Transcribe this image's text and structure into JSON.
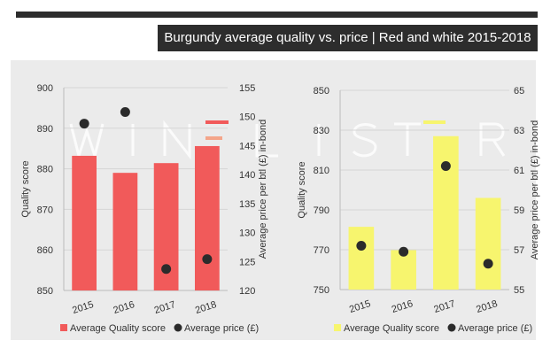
{
  "title": "Burgundy average quality vs. price | Red and white 2015-2018",
  "watermark": "WINELISTER",
  "chart_data": [
    {
      "type": "bar",
      "color": "#f15a5a",
      "categories": [
        "2015",
        "2016",
        "2017",
        "2018"
      ],
      "series": [
        {
          "name": "Average Quality score",
          "values": [
            883.2,
            879,
            881.4,
            885.6
          ],
          "axis": "left"
        },
        {
          "name": "Average price (£)",
          "values": [
            148.8,
            150.8,
            123.7,
            125.4
          ],
          "axis": "right",
          "type": "scatter"
        }
      ],
      "ylabel": "Quality score",
      "y2label": "Average price per btl (£) in-bond",
      "ylim": [
        850,
        900
      ],
      "yticks": [
        850,
        860,
        870,
        880,
        890,
        900
      ],
      "y2lim": [
        120,
        155
      ],
      "y2ticks": [
        120,
        125,
        130,
        135,
        140,
        145,
        150,
        155
      ],
      "legend": "bottom"
    },
    {
      "type": "bar",
      "color": "#f7f56e",
      "categories": [
        "2015",
        "2016",
        "2017",
        "2018"
      ],
      "series": [
        {
          "name": "Average Quality score",
          "values": [
            781.5,
            769.8,
            827,
            796
          ],
          "axis": "left"
        },
        {
          "name": "Average price (£)",
          "values": [
            57.2,
            56.9,
            61.2,
            56.3
          ],
          "axis": "right",
          "type": "scatter"
        }
      ],
      "ylabel": "Quality score",
      "y2label": "Average price per btl (£) in-bond",
      "ylim": [
        750,
        850
      ],
      "yticks": [
        750,
        770,
        790,
        810,
        830,
        850
      ],
      "y2lim": [
        55,
        65
      ],
      "y2ticks": [
        55,
        57,
        59,
        61,
        63,
        65
      ],
      "legend": "bottom"
    }
  ]
}
